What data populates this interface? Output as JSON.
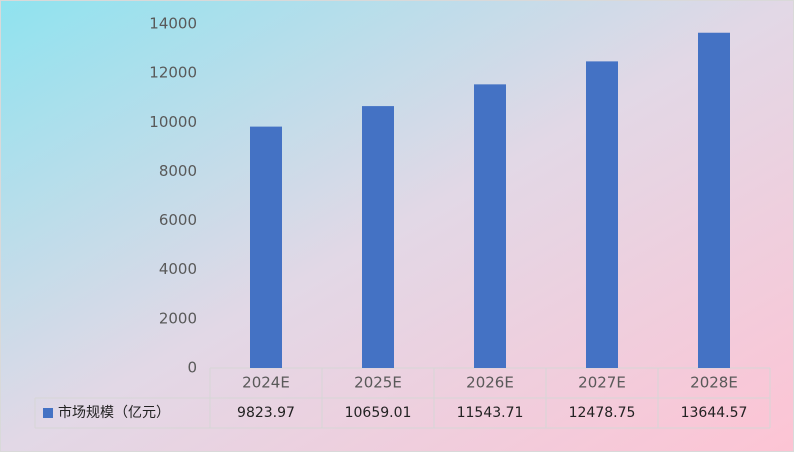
{
  "chart_data": {
    "type": "bar",
    "categories": [
      "2024E",
      "2025E",
      "2026E",
      "2027E",
      "2028E"
    ],
    "series": [
      {
        "name": "市场规模（亿元）",
        "color": "#4472c4",
        "values": [
          9823.97,
          10659.01,
          11543.71,
          12478.75,
          13644.57
        ]
      }
    ],
    "ylim": [
      0,
      14000
    ],
    "yticks": [
      0,
      2000,
      4000,
      6000,
      8000,
      10000,
      12000,
      14000
    ],
    "grid": false,
    "data_table": true
  }
}
